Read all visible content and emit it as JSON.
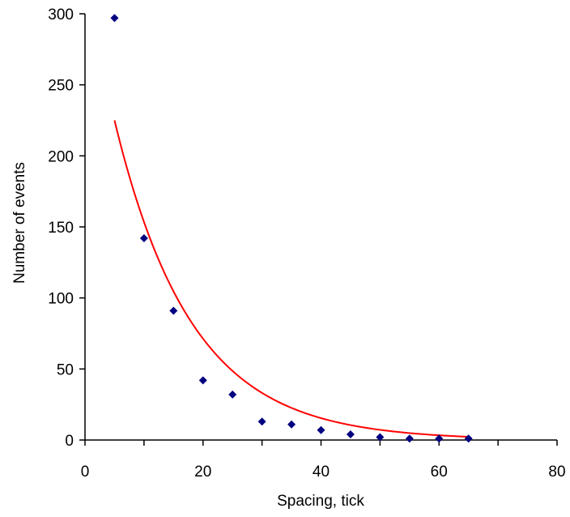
{
  "chart_data": {
    "type": "scatter",
    "title": "",
    "xlabel": "Spacing, tick",
    "ylabel": "Number of events",
    "xlim": [
      0,
      80
    ],
    "ylim": [
      0,
      300
    ],
    "x_ticks": [
      0,
      20,
      40,
      60,
      80
    ],
    "x_minor_ticks": [
      10,
      30,
      50,
      70
    ],
    "y_ticks": [
      0,
      50,
      100,
      150,
      200,
      250,
      300
    ],
    "grid": false,
    "legend": "none",
    "series": [
      {
        "kind": "points",
        "marker": "diamond",
        "color": "#000080",
        "x": [
          5,
          10,
          15,
          20,
          25,
          30,
          35,
          40,
          45,
          50,
          55,
          60,
          65
        ],
        "y": [
          297,
          142,
          91,
          42,
          32,
          13,
          11,
          7,
          4,
          2,
          1,
          1,
          1
        ]
      },
      {
        "kind": "fit-curve",
        "color": "#ff0000",
        "model": "exponential",
        "a": 330,
        "b": 0.0766,
        "x_range": [
          5,
          65
        ]
      }
    ]
  }
}
